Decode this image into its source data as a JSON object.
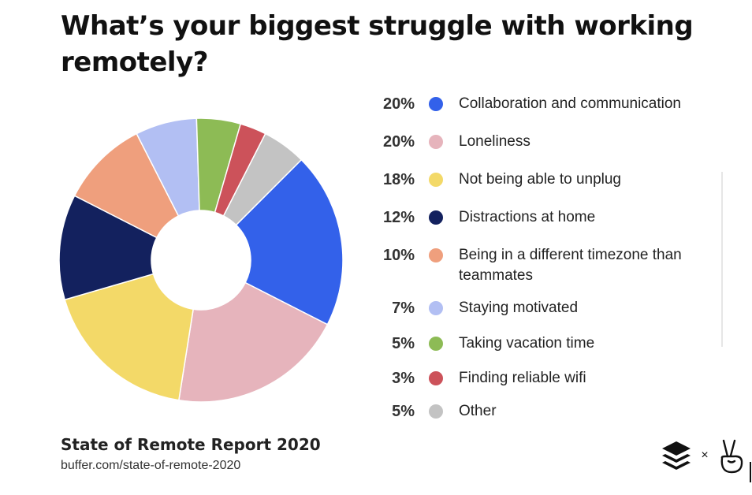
{
  "title": "What’s your biggest struggle with working remotely?",
  "chart_data": {
    "type": "pie",
    "title": "What’s your biggest struggle with working remotely?",
    "donut": true,
    "start_angle_deg": -45,
    "slices": [
      {
        "label": "Collaboration and communication",
        "value": 20,
        "display": "20%",
        "color": "#3361ea"
      },
      {
        "label": "Loneliness",
        "value": 20,
        "display": "20%",
        "color": "#e6b4bc"
      },
      {
        "label": "Not being able to unplug",
        "value": 18,
        "display": "18%",
        "color": "#f3d968"
      },
      {
        "label": "Distractions at home",
        "value": 12,
        "display": "12%",
        "color": "#13215e"
      },
      {
        "label": "Being in a different timezone than teammates",
        "value": 10,
        "display": "10%",
        "color": "#ef9f7d"
      },
      {
        "label": "Staying motivated",
        "value": 7,
        "display": "7%",
        "color": "#b2bff3"
      },
      {
        "label": "Taking vacation time",
        "value": 5,
        "display": "5%",
        "color": "#8dbb55"
      },
      {
        "label": "Finding reliable wifi",
        "value": 3,
        "display": "3%",
        "color": "#cc525a"
      },
      {
        "label": "Other",
        "value": 5,
        "display": "5%",
        "color": "#c3c3c3"
      }
    ],
    "legend_placement": "right"
  },
  "footer": {
    "report": "State of Remote Report 2020",
    "url": "buffer.com/state-of-remote-2020"
  },
  "brand": {
    "separator": "×",
    "left_icon": "buffer-layers-icon",
    "right_icon": "peace-hand-icon"
  }
}
